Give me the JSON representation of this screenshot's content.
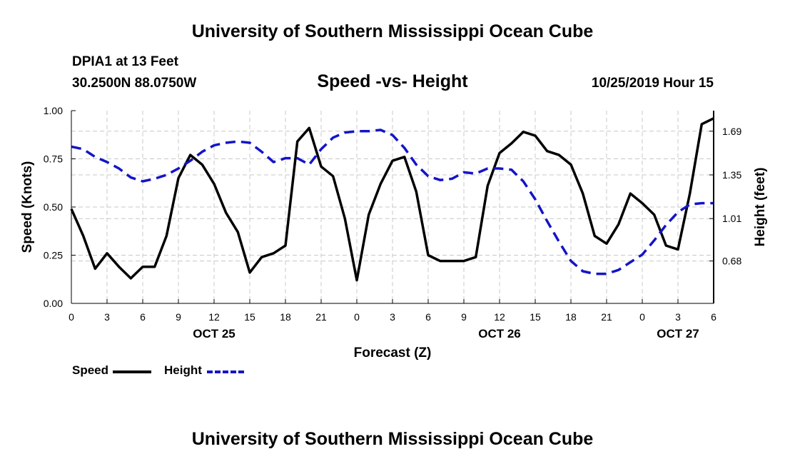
{
  "header": {
    "title_top": "University of Southern Mississippi Ocean Cube",
    "station": "DPIA1 at 13 Feet",
    "coords": "30.2500N 88.0750W",
    "subtitle": "Speed -vs- Height",
    "datetime": "10/25/2019 Hour 15",
    "title_bottom": "University of Southern Mississippi Ocean Cube"
  },
  "legend": {
    "speed_label": "Speed",
    "height_label": "Height"
  },
  "colors": {
    "speed": "#000000",
    "height": "#1414c8",
    "grid": "#c8c8c8"
  },
  "chart_data": {
    "type": "line",
    "title": "Speed -vs- Height",
    "xlabel": "Forecast (Z)",
    "ylabel": "Speed (Knots)",
    "y2label": "Height (feet)",
    "x_unit": "hours from OCT 25 00Z",
    "xlim": [
      0,
      54
    ],
    "ylim": [
      0,
      1.0
    ],
    "y2lim": [
      0.35,
      1.85
    ],
    "x_ticks": [
      0,
      3,
      6,
      9,
      12,
      15,
      18,
      21,
      24,
      27,
      30,
      33,
      36,
      39,
      42,
      45,
      48,
      51,
      54
    ],
    "x_tick_labels": [
      "0",
      "3",
      "6",
      "9",
      "12",
      "15",
      "18",
      "21",
      "0",
      "3",
      "6",
      "9",
      "12",
      "15",
      "18",
      "21",
      "0",
      "3",
      "6"
    ],
    "date_labels": [
      {
        "x": 12,
        "label": "OCT 25"
      },
      {
        "x": 36,
        "label": "OCT 26"
      },
      {
        "x": 51,
        "label": "OCT 27"
      }
    ],
    "y_ticks": [
      0.0,
      0.25,
      0.5,
      0.75,
      1.0
    ],
    "y_tick_labels": [
      "0.00",
      "0.25",
      "0.50",
      "0.75",
      "1.00"
    ],
    "y2_ticks": [
      0.68,
      1.01,
      1.35,
      1.69
    ],
    "y2_tick_labels": [
      "0.68",
      "1.01",
      "1.35",
      "1.69"
    ],
    "grid": true,
    "series": [
      {
        "name": "Speed",
        "axis": "left",
        "style": "solid",
        "x": [
          0,
          1,
          2,
          3,
          4,
          5,
          6,
          7,
          8,
          9,
          10,
          11,
          12,
          13,
          14,
          15,
          16,
          17,
          18,
          19,
          20,
          21,
          22,
          23,
          24,
          25,
          26,
          27,
          28,
          29,
          30,
          31,
          32,
          33,
          34,
          35,
          36,
          37,
          38,
          39,
          40,
          41,
          42,
          43,
          44,
          45,
          46,
          47,
          48,
          49,
          50,
          51,
          52,
          53,
          54
        ],
        "values": [
          0.49,
          0.35,
          0.18,
          0.26,
          0.19,
          0.13,
          0.19,
          0.19,
          0.35,
          0.65,
          0.77,
          0.72,
          0.62,
          0.47,
          0.37,
          0.16,
          0.24,
          0.26,
          0.3,
          0.84,
          0.91,
          0.71,
          0.66,
          0.44,
          0.12,
          0.46,
          0.62,
          0.74,
          0.76,
          0.58,
          0.25,
          0.22,
          0.22,
          0.22,
          0.24,
          0.61,
          0.78,
          0.83,
          0.89,
          0.87,
          0.79,
          0.77,
          0.72,
          0.57,
          0.35,
          0.31,
          0.41,
          0.57,
          0.52,
          0.46,
          0.3,
          0.28,
          0.57,
          0.93,
          0.96
        ]
      },
      {
        "name": "Height",
        "axis": "right",
        "style": "dashed",
        "x": [
          0,
          1,
          2,
          3,
          4,
          5,
          6,
          7,
          8,
          9,
          10,
          11,
          12,
          13,
          14,
          15,
          16,
          17,
          18,
          19,
          20,
          21,
          22,
          23,
          24,
          25,
          26,
          27,
          28,
          29,
          30,
          31,
          32,
          33,
          34,
          35,
          36,
          37,
          38,
          39,
          40,
          41,
          42,
          43,
          44,
          45,
          46,
          47,
          48,
          49,
          50,
          51,
          52,
          53,
          54
        ],
        "values": [
          1.57,
          1.55,
          1.49,
          1.45,
          1.4,
          1.33,
          1.3,
          1.32,
          1.35,
          1.4,
          1.46,
          1.53,
          1.58,
          1.6,
          1.61,
          1.6,
          1.53,
          1.45,
          1.48,
          1.48,
          1.43,
          1.55,
          1.64,
          1.68,
          1.69,
          1.69,
          1.7,
          1.66,
          1.56,
          1.43,
          1.34,
          1.31,
          1.32,
          1.37,
          1.36,
          1.4,
          1.4,
          1.39,
          1.3,
          1.16,
          0.99,
          0.83,
          0.68,
          0.6,
          0.58,
          0.58,
          0.61,
          0.67,
          0.73,
          0.84,
          0.96,
          1.06,
          1.12,
          1.13,
          1.13
        ]
      }
    ]
  }
}
